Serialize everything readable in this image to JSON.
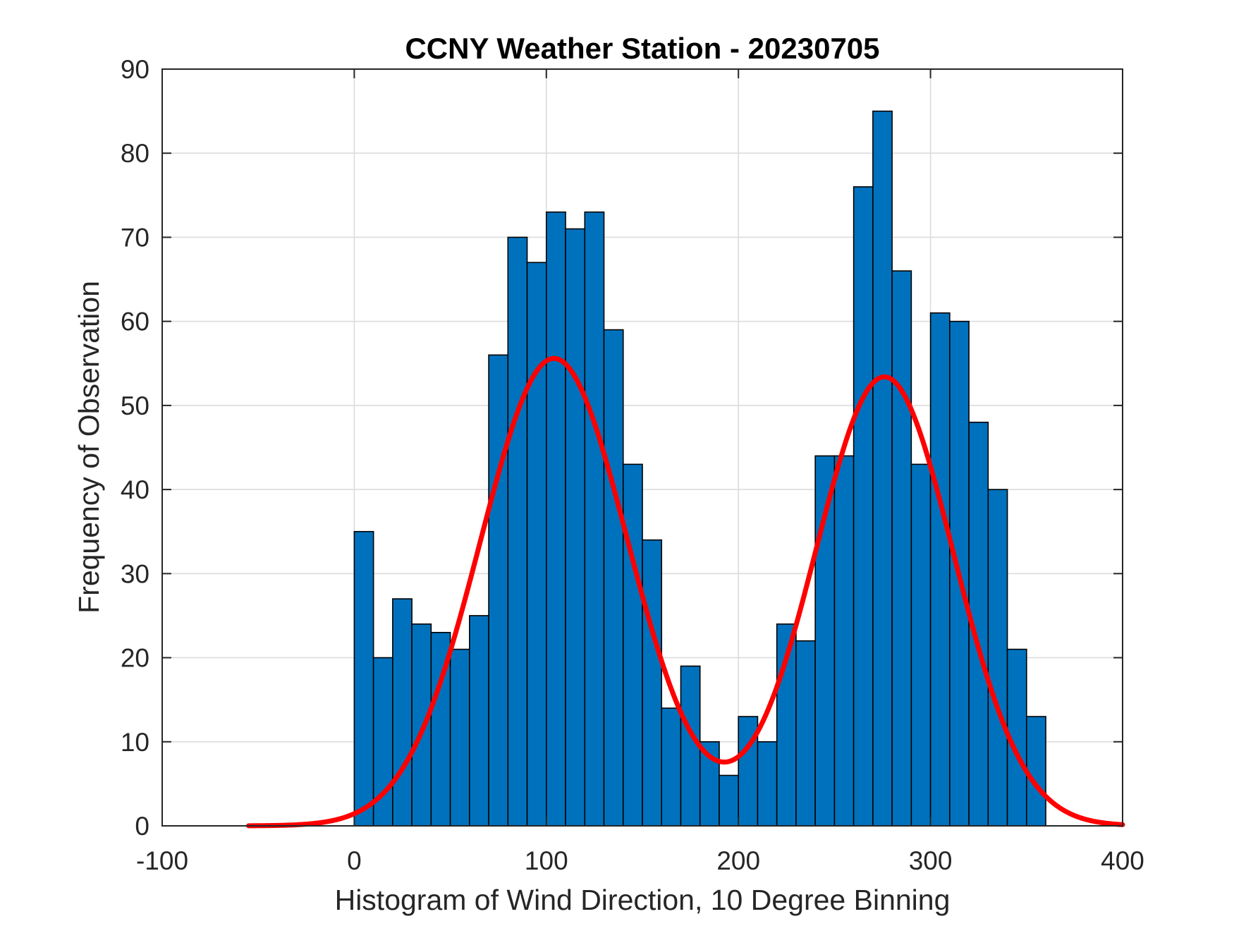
{
  "chart_data": {
    "type": "bar",
    "title": "CCNY Weather Station - 20230705",
    "xlabel": "Histogram of Wind Direction, 10 Degree Binning",
    "ylabel": "Frequency of Observation",
    "xlim": [
      -100,
      400
    ],
    "ylim": [
      0,
      90
    ],
    "xticks": [
      -100,
      0,
      100,
      200,
      300,
      400
    ],
    "yticks": [
      0,
      10,
      20,
      30,
      40,
      50,
      60,
      70,
      80,
      90
    ],
    "grid": true,
    "bin_width": 10,
    "bin_edges_start": 0,
    "values": [
      35,
      20,
      27,
      24,
      23,
      21,
      25,
      56,
      70,
      67,
      73,
      71,
      73,
      59,
      43,
      34,
      14,
      19,
      10,
      6,
      13,
      10,
      24,
      22,
      44,
      44,
      76,
      85,
      66,
      43,
      61,
      60,
      48,
      40,
      21,
      13
    ],
    "fit_curve": {
      "name": "bimodal distribution fit",
      "x_range": [
        -55,
        400
      ],
      "modes": [
        {
          "mean": 104,
          "sd": 38.5,
          "amplitude": 55.6
        },
        {
          "mean": 276,
          "sd": 36,
          "amplitude": 53.4
        }
      ]
    },
    "colors": {
      "bars": "#0072bd",
      "bar_edge": "#000000",
      "fit": "#ff0000"
    }
  }
}
